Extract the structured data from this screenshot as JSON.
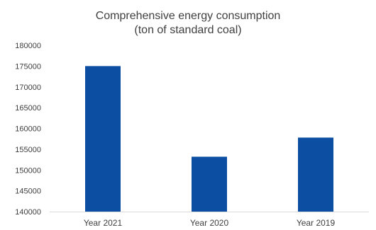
{
  "chart_data": {
    "type": "bar",
    "title_lines": [
      "Comprehensive energy consumption",
      "(ton of standard coal)"
    ],
    "categories": [
      "Year 2021",
      "Year 2020",
      "Year 2019"
    ],
    "values": [
      175000,
      153200,
      157800
    ],
    "ylim": [
      140000,
      180000
    ],
    "yticks": [
      140000,
      145000,
      150000,
      155000,
      160000,
      165000,
      170000,
      175000,
      180000
    ],
    "grid": false,
    "legend": "none",
    "bar_color": "#0B4EA2",
    "axis_color": "#D9D9D9"
  }
}
